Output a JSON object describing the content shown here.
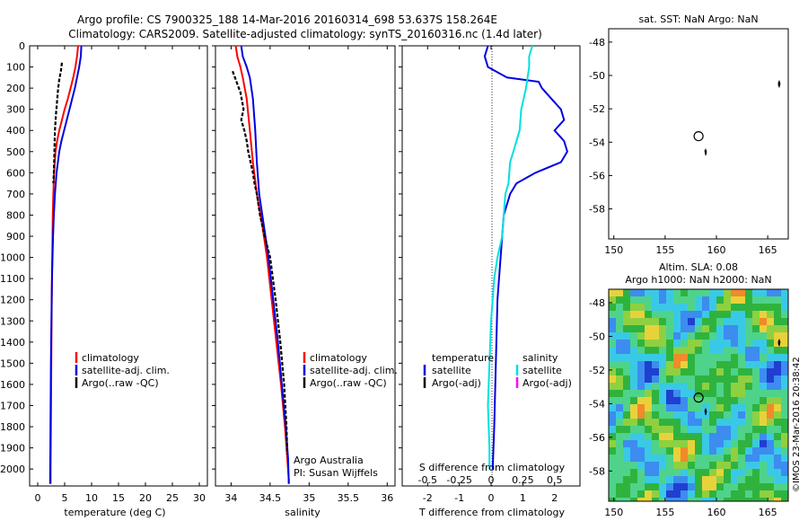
{
  "title_line1": "Argo profile: CS 7900325_188 14-Mar-2016 20160314_698 53.637S 158.264E",
  "title_line2": "Climatology: CARS2009. Satellite-adjusted climatology: synTS_20160316.nc (1.4d later)",
  "colors": {
    "climatology": "#ff0000",
    "satellite": "#0000e0",
    "argo": "#000000",
    "salinity_satellite": "#00e0e0",
    "salinity_argo": "#ff00ff"
  },
  "depth_ticks": [
    "0",
    "100",
    "200",
    "300",
    "400",
    "500",
    "600",
    "700",
    "800",
    "900",
    "1000",
    "1100",
    "1200",
    "1300",
    "1400",
    "1500",
    "1600",
    "1700",
    "1800",
    "1900",
    "2000"
  ],
  "chart_data": [
    {
      "type": "line",
      "panel": "temperature",
      "xlabel": "temperature (deg C)",
      "xticks": [
        "0",
        "5",
        "10",
        "15",
        "20",
        "25",
        "30"
      ],
      "xlim": [
        -1.5,
        31.5
      ],
      "ylim": [
        2080,
        0
      ],
      "legend": [
        "climatology",
        "satellite-adj. clim.",
        "Argo(..raw -QC)"
      ],
      "series": [
        {
          "name": "climatology",
          "color": "#ff0000",
          "x": [
            7.5,
            7.3,
            7.0,
            6.6,
            6.1,
            5.6,
            5.0,
            4.5,
            4.0,
            3.6,
            3.3,
            3.05,
            2.9,
            2.8,
            2.75,
            2.7,
            2.65,
            2.6,
            2.55,
            2.5,
            2.45,
            2.4,
            2.4
          ],
          "y": [
            0,
            50,
            100,
            150,
            200,
            250,
            300,
            350,
            400,
            450,
            500,
            600,
            700,
            800,
            900,
            1000,
            1100,
            1200,
            1400,
            1600,
            1800,
            2000,
            2070
          ]
        },
        {
          "name": "satellite-adj. clim.",
          "color": "#0000e0",
          "x": [
            8.1,
            8.0,
            7.7,
            7.3,
            6.9,
            6.4,
            5.9,
            5.4,
            4.9,
            4.4,
            4.0,
            3.5,
            3.2,
            3.0,
            2.85,
            2.75,
            2.65,
            2.55,
            2.45,
            2.4,
            2.35,
            2.3
          ],
          "y": [
            0,
            50,
            100,
            150,
            200,
            250,
            300,
            350,
            400,
            450,
            500,
            600,
            700,
            800,
            900,
            1000,
            1100,
            1300,
            1500,
            1700,
            1900,
            2070
          ]
        },
        {
          "name": "Argo(..raw -QC)",
          "color": "#000000",
          "x": [
            4.5,
            4.3,
            4.0,
            3.8,
            3.6,
            3.4,
            3.2,
            3.1,
            3.0,
            2.9
          ],
          "y": [
            80,
            120,
            160,
            200,
            260,
            320,
            400,
            500,
            600,
            650
          ]
        }
      ]
    },
    {
      "type": "line",
      "panel": "salinity",
      "xlabel": "salinity",
      "xticks": [
        "34",
        "34.5",
        "35",
        "35.5",
        "36"
      ],
      "xlim": [
        33.8,
        36.1
      ],
      "ylim": [
        2080,
        0
      ],
      "legend": [
        "climatology",
        "satellite-adj. clim.",
        "Argo(..raw -QC)"
      ],
      "annotations": [
        "Argo Australia",
        "PI: Susan Wijffels"
      ],
      "series": [
        {
          "name": "climatology",
          "color": "#ff0000",
          "x": [
            34.06,
            34.08,
            34.12,
            34.15,
            34.2,
            34.24,
            34.28,
            34.33,
            34.4,
            34.46,
            34.52,
            34.58,
            34.64,
            34.69,
            34.72,
            34.74,
            34.74
          ],
          "y": [
            0,
            50,
            100,
            150,
            250,
            400,
            550,
            700,
            850,
            1000,
            1200,
            1400,
            1600,
            1800,
            1950,
            2050,
            2070
          ]
        },
        {
          "name": "satellite-adj. clim.",
          "color": "#0000e0",
          "x": [
            34.13,
            34.15,
            34.2,
            34.24,
            34.28,
            34.31,
            34.33,
            34.36,
            34.42,
            34.48,
            34.54,
            34.6,
            34.65,
            34.7,
            34.73,
            34.74
          ],
          "y": [
            0,
            50,
            100,
            150,
            250,
            400,
            550,
            700,
            850,
            1000,
            1200,
            1400,
            1600,
            1800,
            1950,
            2070
          ]
        },
        {
          "name": "Argo(..raw -QC)",
          "color": "#000000",
          "x": [
            34.02,
            34.05,
            34.08,
            34.12,
            34.14,
            34.16,
            34.13,
            34.17,
            34.2,
            34.22,
            34.25,
            34.28,
            34.3,
            34.33,
            34.37,
            34.43,
            34.5,
            34.57,
            34.63,
            34.68,
            34.71,
            34.72
          ],
          "y": [
            120,
            150,
            180,
            220,
            260,
            300,
            350,
            400,
            450,
            500,
            550,
            600,
            650,
            700,
            800,
            900,
            1000,
            1200,
            1400,
            1600,
            1800,
            1930
          ]
        }
      ]
    },
    {
      "type": "line",
      "panel": "differences",
      "xlabel": "T difference from climatology",
      "xlabel_top": "S difference from climatology",
      "xticks": [
        "-2",
        "-1",
        "0",
        "1",
        "2"
      ],
      "xticks_top": [
        "-0.5",
        "-0.25",
        "0",
        "0.25",
        "0.5"
      ],
      "xlim": [
        -2.8,
        2.8
      ],
      "ylim": [
        2080,
        0
      ],
      "legend_temperature": [
        "temperature",
        "satellite",
        "Argo(-adj)"
      ],
      "legend_salinity": [
        "salinity",
        "satellite",
        "Argo(-adj)"
      ],
      "series": [
        {
          "name": "temperature satellite",
          "color": "#0000e0",
          "x": [
            -0.1,
            -0.2,
            -0.1,
            0.5,
            1.5,
            1.6,
            1.9,
            2.2,
            2.3,
            2.0,
            2.3,
            2.4,
            2.2,
            1.4,
            0.8,
            0.6,
            0.4,
            0.3,
            0.2,
            0.15,
            0.1,
            0.05
          ],
          "y": [
            0,
            50,
            100,
            150,
            170,
            200,
            250,
            300,
            350,
            400,
            450,
            500,
            550,
            600,
            650,
            700,
            800,
            1000,
            1200,
            1500,
            1800,
            2000
          ]
        },
        {
          "name": "salinity satellite",
          "color": "#00e0e0",
          "x": [
            1.3,
            1.2,
            1.2,
            1.1,
            0.95,
            0.9,
            0.7,
            0.6,
            0.55,
            0.45,
            0.4,
            0.35,
            0.2,
            0.1,
            0.0,
            -0.05,
            -0.1,
            -0.05,
            -0.05
          ],
          "y": [
            0,
            50,
            100,
            200,
            300,
            400,
            500,
            550,
            650,
            700,
            800,
            900,
            1000,
            1100,
            1300,
            1500,
            1700,
            1900,
            2000
          ]
        }
      ]
    },
    {
      "type": "scatter",
      "panel": "location map",
      "title": "sat. SST: NaN Argo: NaN",
      "xticks": [
        "150",
        "155",
        "160",
        "165"
      ],
      "yticks": [
        "-48",
        "-50",
        "-52",
        "-54",
        "-56",
        "-58"
      ],
      "xlim": [
        149.5,
        167
      ],
      "ylim": [
        -59.8,
        -47.2
      ],
      "points": [
        {
          "x": 158.26,
          "y": -53.64
        }
      ]
    },
    {
      "type": "heatmap",
      "panel": "altimetry map",
      "title_line1": "Altim. SLA: 0.08",
      "title_line2": "Argo h1000: NaN h2000: NaN",
      "side_label": "©IMOS 23-Mar-2016 20:38:42",
      "xticks": [
        "150",
        "155",
        "160",
        "165"
      ],
      "yticks": [
        "-48",
        "-50",
        "-52",
        "-54",
        "-56",
        "-58"
      ],
      "xlim": [
        149.5,
        167
      ],
      "ylim": [
        -59.8,
        -47.2
      ],
      "points": [
        {
          "x": 158.26,
          "y": -53.64
        }
      ]
    }
  ]
}
